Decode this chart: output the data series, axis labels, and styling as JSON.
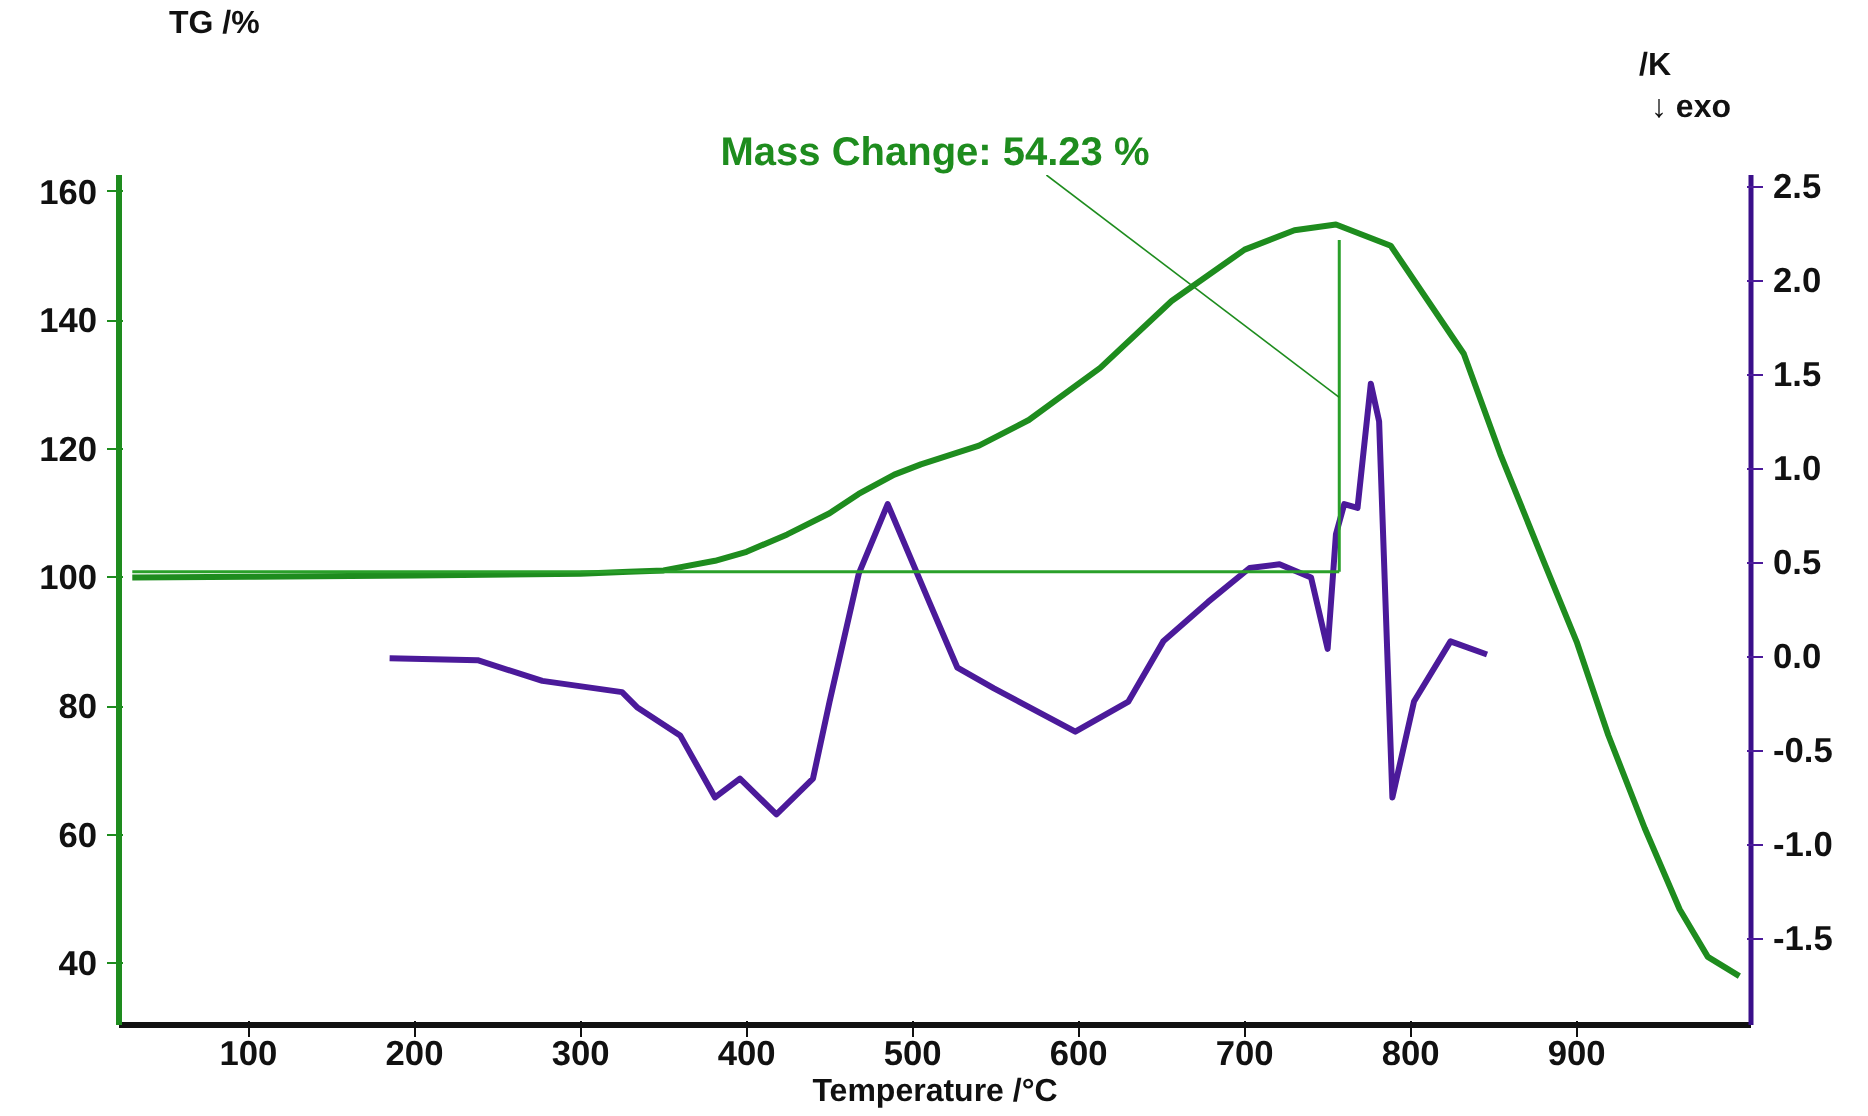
{
  "chart_data": {
    "type": "line",
    "xlabel": "Temperature /°C",
    "ylabel": "TG /%",
    "y2label": "/K",
    "xlim": [
      22,
      1005
    ],
    "xticks": [
      100,
      200,
      300,
      400,
      500,
      600,
      700,
      800,
      900
    ],
    "ylim": [
      30.4,
      162.6
    ],
    "yticks": [
      40,
      60,
      80,
      100,
      120,
      140,
      160
    ],
    "y2lim": [
      -1.96,
      2.56
    ],
    "y2ticks": [
      {
        "value": 2.5,
        "label": "2.5"
      },
      {
        "value": 2.0,
        "label": "2.0"
      },
      {
        "value": 1.5,
        "label": "1.5"
      },
      {
        "value": 1.0,
        "label": "1.0"
      },
      {
        "value": 0.5,
        "label": "0.5"
      },
      {
        "value": 0.0,
        "label": "0.0"
      },
      {
        "value": -0.5,
        "label": "-0.5"
      },
      {
        "value": -1.0,
        "label": "-1.0"
      },
      {
        "value": -1.5,
        "label": "-1.5"
      }
    ],
    "grid": false,
    "line_style": "solid",
    "marker": "none",
    "annotations": [
      {
        "text": "Mass Change: 54.23 %",
        "x": 757,
        "y": 128
      },
      "↓ exo"
    ],
    "series": [
      {
        "color": "#1e8c1e",
        "x": [
          30,
          100,
          200,
          300,
          329,
          350,
          381,
          400,
          424.5,
          450,
          467.5,
          489,
          505,
          540,
          570,
          613,
          656,
          700,
          730,
          755,
          788,
          832,
          854,
          880,
          900,
          919,
          941,
          962,
          979,
          998
        ],
        "values": [
          100.0,
          100.1,
          100.3,
          100.6,
          100.9,
          101.1,
          102.6,
          104.0,
          106.7,
          110.0,
          113.0,
          116.0,
          117.6,
          120.5,
          124.5,
          132.6,
          143.0,
          151.0,
          154.0,
          154.9,
          151.6,
          134.8,
          119.2,
          102.6,
          90.0,
          75.5,
          61.0,
          48.4,
          41.0,
          38.0
        ]
      },
      {
        "color": "#4b1a9a",
        "axis": "y2",
        "x": [
          185,
          238,
          277,
          325,
          334,
          360,
          381,
          396,
          418,
          440,
          450,
          467.6,
          485,
          510,
          527,
          549,
          598,
          630,
          651,
          678,
          703,
          721,
          740,
          750,
          755,
          760,
          768,
          776,
          781,
          789,
          802,
          824,
          846
        ],
        "values": [
          -0.01,
          -0.02,
          -0.13,
          -0.19,
          -0.27,
          -0.42,
          -0.75,
          -0.65,
          -0.84,
          -0.65,
          -0.24,
          0.44,
          0.81,
          0.29,
          -0.06,
          -0.17,
          -0.4,
          -0.24,
          0.08,
          0.29,
          0.47,
          0.49,
          0.42,
          0.04,
          0.65,
          0.81,
          0.79,
          1.45,
          1.25,
          -0.75,
          -0.24,
          0.08,
          0.01
        ]
      },
      {
        "color": "#2aa02a",
        "x": [
          30,
          757
        ],
        "values": [
          100.9,
          100.9
        ]
      },
      {
        "color": "#2aa02a",
        "x": [
          757,
          757
        ],
        "values": [
          100.9,
          152.5
        ]
      }
    ]
  }
}
